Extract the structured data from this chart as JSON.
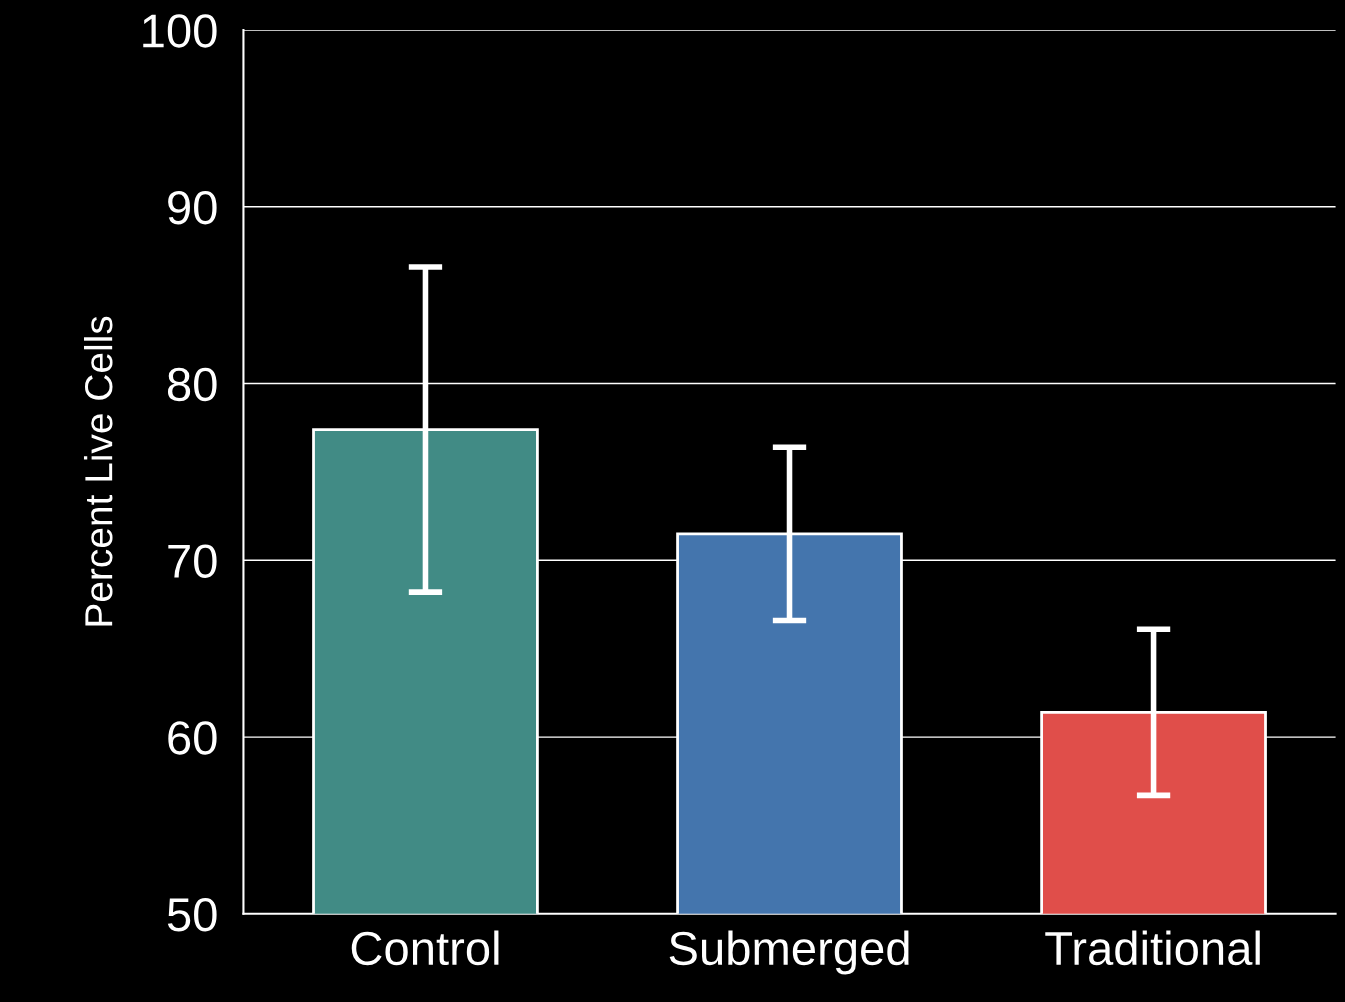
{
  "chart_data": {
    "type": "bar",
    "ylabel": "Percent Live Cells",
    "categories": [
      "Control",
      "Submerged",
      "Traditional"
    ],
    "values": [
      77.4,
      71.5,
      61.4
    ],
    "errors": [
      9.2,
      4.9,
      4.7
    ],
    "colors": [
      "#418b85",
      "#4475ad",
      "#e04e4a"
    ],
    "ylim": [
      50,
      100
    ],
    "yticks": [
      50,
      60,
      70,
      80,
      90,
      100
    ],
    "grid": "y"
  }
}
